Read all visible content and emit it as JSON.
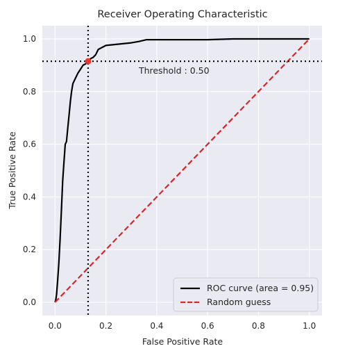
{
  "chart_data": {
    "type": "line",
    "title": "Receiver Operating Characteristic",
    "xlabel": "False Positive Rate",
    "ylabel": "True Positive Rate",
    "xlim": [
      -0.05,
      1.05
    ],
    "ylim": [
      -0.05,
      1.05
    ],
    "x_ticks": [
      0.0,
      0.2,
      0.4,
      0.6,
      0.8,
      1.0
    ],
    "y_ticks": [
      0.0,
      0.2,
      0.4,
      0.6,
      0.8,
      1.0
    ],
    "x_tick_labels": [
      "0.0",
      "0.2",
      "0.4",
      "0.6",
      "0.8",
      "1.0"
    ],
    "y_tick_labels": [
      "0.0",
      "0.2",
      "0.4",
      "0.6",
      "0.8",
      "1.0"
    ],
    "grid": true,
    "background": "#eaeaf2",
    "legend_position": "lower right",
    "series": [
      {
        "name": "ROC curve (area = 0.95)",
        "color": "#000000",
        "style": "solid",
        "x": [
          0.0,
          0.003,
          0.006,
          0.01,
          0.015,
          0.02,
          0.025,
          0.03,
          0.035,
          0.04,
          0.045,
          0.05,
          0.055,
          0.06,
          0.065,
          0.07,
          0.08,
          0.09,
          0.1,
          0.11,
          0.12,
          0.13,
          0.14,
          0.15,
          0.16,
          0.17,
          0.2,
          0.25,
          0.3,
          0.33,
          0.36,
          0.4,
          0.5,
          0.6,
          0.7,
          0.8,
          0.9,
          1.0
        ],
        "y": [
          0.0,
          0.01,
          0.03,
          0.08,
          0.15,
          0.24,
          0.35,
          0.46,
          0.53,
          0.6,
          0.61,
          0.66,
          0.71,
          0.76,
          0.8,
          0.83,
          0.85,
          0.87,
          0.885,
          0.9,
          0.905,
          0.915,
          0.925,
          0.93,
          0.94,
          0.96,
          0.975,
          0.98,
          0.985,
          0.99,
          0.997,
          0.997,
          0.997,
          0.997,
          1.0,
          1.0,
          1.0,
          1.0
        ]
      },
      {
        "name": "Random guess",
        "color": "#d62728",
        "style": "dashed",
        "x": [
          0.0,
          1.0
        ],
        "y": [
          0.0,
          1.0
        ]
      }
    ],
    "threshold_point": {
      "x": 0.13,
      "y": 0.915,
      "color": "#e8392c",
      "label": "Threshold : 0.50"
    }
  }
}
